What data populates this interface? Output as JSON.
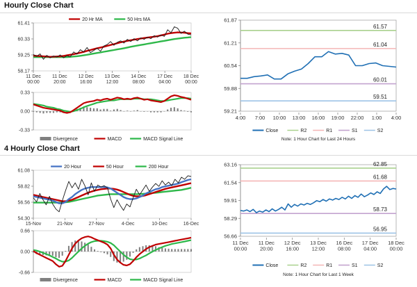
{
  "sections": {
    "hourly_title": "Hourly Close Chart",
    "four_hourly_title": "4 Hourly Close Chart"
  },
  "colors": {
    "price": "#1a1a1a",
    "ma_fast": "#c00000",
    "ma_mid": "#c00000",
    "ma_slow": "#2eb84a",
    "ma_blue": "#4472c4",
    "divergence": "#808080",
    "macd": "#c00000",
    "signal": "#2eb84a",
    "close": "#1f6fb4",
    "r2": "#a9d18e",
    "r1": "#f4b6b6",
    "s1": "#c3a3cf",
    "s2": "#9dc3e6"
  },
  "chart_data": [
    {
      "id": "hourly_price",
      "type": "line",
      "x_labels": [
        "11 Dec\n00:00",
        "11 Dec\n20:00",
        "12 Dec\n16:00",
        "13 Dec\n12:00",
        "14 Dec\n08:00",
        "17 Dec\n04:00",
        "18 Dec\n00:00"
      ],
      "y_ticks": [
        "61.41",
        "60.33",
        "59.25",
        "58.17"
      ],
      "ylim": [
        58.17,
        61.41
      ],
      "legend": [
        "20 Hr MA",
        "50 Hrs MA"
      ],
      "series": [
        {
          "name": "price",
          "values": [
            59.28,
            59.15,
            59.32,
            58.95,
            59.22,
            59.05,
            59.18,
            59.1,
            59.25,
            59.05,
            59.2,
            59.12,
            59.45,
            59.3,
            59.6,
            59.45,
            59.75,
            59.4,
            59.55,
            59.7,
            59.5,
            59.85,
            59.95,
            60.15,
            59.9,
            60.1,
            60.2,
            60.05,
            60.3,
            60.15,
            60.35,
            60.2,
            60.4,
            60.3,
            60.45,
            60.35,
            60.55,
            60.45,
            60.6,
            60.5,
            60.95,
            60.75,
            61.15,
            61.05,
            60.7,
            60.85,
            60.65,
            60.6
          ]
        },
        {
          "name": "20 Hr MA",
          "values": [
            59.2,
            59.18,
            59.17,
            59.15,
            59.14,
            59.12,
            59.13,
            59.14,
            59.15,
            59.18,
            59.22,
            59.26,
            59.3,
            59.35,
            59.4,
            59.45,
            59.52,
            59.58,
            59.64,
            59.7,
            59.75,
            59.8,
            59.86,
            59.92,
            59.98,
            60.04,
            60.1,
            60.15,
            60.2,
            60.24,
            60.28,
            60.32,
            60.36,
            60.39,
            60.42,
            60.45,
            60.48,
            60.52,
            60.57,
            60.62,
            60.68,
            60.72,
            60.75,
            60.77,
            60.76,
            60.75,
            60.72,
            60.7
          ]
        },
        {
          "name": "50 Hrs MA",
          "values": [
            59.1,
            59.1,
            59.1,
            59.1,
            59.1,
            59.1,
            59.1,
            59.1,
            59.1,
            59.1,
            59.1,
            59.12,
            59.14,
            59.16,
            59.19,
            59.22,
            59.26,
            59.3,
            59.34,
            59.38,
            59.42,
            59.46,
            59.5,
            59.54,
            59.58,
            59.62,
            59.66,
            59.7,
            59.75,
            59.8,
            59.84,
            59.88,
            59.92,
            59.96,
            60.0,
            60.04,
            60.08,
            60.12,
            60.16,
            60.2,
            60.24,
            60.28,
            60.32,
            60.35,
            60.38,
            60.41,
            60.43,
            60.45
          ]
        }
      ]
    },
    {
      "id": "hourly_macd",
      "type": "line",
      "y_ticks": [
        "0.33",
        "0.00",
        "-0.33"
      ],
      "ylim": [
        -0.33,
        0.33
      ],
      "legend": [
        "Divergence",
        "MACD",
        "MACD Signal Line"
      ],
      "series": [
        {
          "name": "MACD",
          "values": [
            0.12,
            0.1,
            0.08,
            0.06,
            0.05,
            0.04,
            0.03,
            0.02,
            0.01,
            -0.02,
            -0.03,
            -0.02,
            0.02,
            0.06,
            0.1,
            0.14,
            0.16,
            0.17,
            0.18,
            0.2,
            0.19,
            0.21,
            0.22,
            0.2,
            0.22,
            0.24,
            0.23,
            0.21,
            0.22,
            0.21,
            0.23,
            0.24,
            0.22,
            0.2,
            0.21,
            0.19,
            0.18,
            0.17,
            0.16,
            0.18,
            0.22,
            0.26,
            0.28,
            0.27,
            0.25,
            0.24,
            0.22,
            0.2
          ]
        },
        {
          "name": "MACD Signal Line",
          "values": [
            0.13,
            0.12,
            0.11,
            0.1,
            0.08,
            0.07,
            0.06,
            0.04,
            0.03,
            0.01,
            0.0,
            -0.01,
            0.0,
            0.02,
            0.04,
            0.07,
            0.09,
            0.11,
            0.13,
            0.15,
            0.16,
            0.17,
            0.18,
            0.19,
            0.19,
            0.2,
            0.21,
            0.21,
            0.21,
            0.21,
            0.22,
            0.22,
            0.22,
            0.21,
            0.21,
            0.21,
            0.2,
            0.19,
            0.18,
            0.18,
            0.19,
            0.2,
            0.21,
            0.22,
            0.23,
            0.23,
            0.23,
            0.22
          ]
        },
        {
          "name": "Divergence",
          "values": [
            -0.01,
            -0.02,
            -0.03,
            -0.04,
            -0.03,
            -0.03,
            -0.03,
            -0.02,
            -0.02,
            -0.03,
            -0.03,
            -0.01,
            0.02,
            0.04,
            0.06,
            0.07,
            0.07,
            0.06,
            0.05,
            0.05,
            0.03,
            0.04,
            0.04,
            0.01,
            0.03,
            0.04,
            0.02,
            0.0,
            0.01,
            0.0,
            0.01,
            0.02,
            0.0,
            -0.01,
            0.0,
            -0.02,
            -0.02,
            -0.02,
            -0.02,
            0.0,
            0.03,
            0.06,
            0.07,
            0.05,
            0.02,
            0.01,
            -0.01,
            -0.02
          ]
        }
      ]
    },
    {
      "id": "hourly_pivot",
      "type": "line",
      "x_labels": [
        "4:00",
        "7:00",
        "10:00",
        "13:00",
        "16:00",
        "19:00",
        "22:00",
        "1:00",
        "4:00"
      ],
      "y_ticks": [
        "61.87",
        "61.21",
        "60.54",
        "59.88",
        "59.21"
      ],
      "ylim": [
        59.21,
        61.87
      ],
      "levels": [
        {
          "name": "R2",
          "value": 61.57,
          "label": "61.57"
        },
        {
          "name": "R1",
          "value": 61.04,
          "label": "61.04"
        },
        {
          "name": "S1",
          "value": 60.01,
          "label": "60.01"
        },
        {
          "name": "S2",
          "value": 59.51,
          "label": "59.51"
        }
      ],
      "legend": [
        "Close",
        "R2",
        "R1",
        "S1",
        "S2"
      ],
      "note": "Note: 1 Hour Chart for Last 24 Hours",
      "series": [
        {
          "name": "Close",
          "values": [
            60.17,
            60.17,
            60.22,
            60.24,
            60.27,
            60.15,
            60.15,
            60.3,
            60.38,
            60.44,
            60.6,
            60.8,
            60.8,
            60.95,
            60.88,
            60.9,
            60.85,
            60.54,
            60.54,
            60.6,
            60.62,
            60.54,
            60.52,
            60.5
          ]
        }
      ]
    },
    {
      "id": "four_hourly_price",
      "type": "line",
      "x_labels": [
        "15-Nov",
        "21-Nov",
        "27-Nov",
        "4-Dec",
        "10-Dec",
        "16-Dec"
      ],
      "y_ticks": [
        "61.08",
        "58.82",
        "56.56",
        "54.30"
      ],
      "ylim": [
        54.3,
        61.08
      ],
      "legend": [
        "20 Hour",
        "50 Hour",
        "200 Hour"
      ],
      "series": [
        {
          "name": "price",
          "values": [
            57.2,
            56.6,
            57.8,
            56.9,
            56.2,
            57.4,
            56.3,
            55.6,
            55.2,
            56.8,
            58.2,
            59.5,
            58.6,
            59.3,
            58.4,
            59.8,
            58.9,
            57.6,
            59.3,
            58.1,
            59.0,
            58.7,
            58.9,
            58.6,
            57.0,
            55.8,
            56.9,
            56.1,
            55.4,
            56.3,
            55.9,
            57.2,
            58.4,
            57.6,
            58.3,
            59.0,
            58.1,
            58.7,
            59.2,
            58.8,
            59.6,
            59.0,
            59.4,
            58.9,
            59.8,
            59.3,
            60.1,
            59.8,
            60.3,
            60.2
          ]
        },
        {
          "name": "20 Hour",
          "values": [
            57.4,
            57.3,
            57.2,
            57.1,
            57.0,
            56.9,
            56.8,
            56.6,
            56.4,
            56.4,
            56.6,
            57.0,
            57.3,
            57.7,
            58.0,
            58.3,
            58.5,
            58.6,
            58.7,
            58.7,
            58.7,
            58.7,
            58.7,
            58.65,
            58.5,
            58.2,
            57.9,
            57.6,
            57.3,
            57.1,
            57.0,
            57.0,
            57.1,
            57.3,
            57.5,
            57.8,
            58.0,
            58.2,
            58.4,
            58.5,
            58.7,
            58.8,
            58.9,
            59.0,
            59.1,
            59.2,
            59.4,
            59.55,
            59.7,
            59.8
          ]
        },
        {
          "name": "50 Hour",
          "values": [
            57.6,
            57.5,
            57.4,
            57.3,
            57.2,
            57.1,
            57.0,
            56.9,
            56.8,
            56.7,
            56.7,
            56.8,
            56.9,
            57.1,
            57.3,
            57.5,
            57.7,
            57.9,
            58.05,
            58.2,
            58.3,
            58.4,
            58.45,
            58.5,
            58.5,
            58.45,
            58.35,
            58.2,
            58.0,
            57.8,
            57.6,
            57.45,
            57.4,
            57.4,
            57.45,
            57.55,
            57.7,
            57.85,
            58.0,
            58.15,
            58.3,
            58.45,
            58.55,
            58.65,
            58.75,
            58.85,
            58.95,
            59.05,
            59.15,
            59.25
          ]
        },
        {
          "name": "200 Hour",
          "values": [
            56.5,
            56.5,
            56.5,
            56.5,
            56.5,
            56.5,
            56.5,
            56.5,
            56.5,
            56.5,
            56.55,
            56.6,
            56.7,
            56.8,
            56.9,
            57.0,
            57.1,
            57.2,
            57.3,
            57.4,
            57.5,
            57.55,
            57.6,
            57.65,
            57.7,
            57.7,
            57.7,
            57.7,
            57.7,
            57.7,
            57.7,
            57.7,
            57.7,
            57.72,
            57.75,
            57.78,
            57.82,
            57.86,
            57.9,
            57.95,
            58.0,
            58.05,
            58.1,
            58.15,
            58.2,
            58.25,
            58.3,
            58.4,
            58.5,
            58.6
          ]
        }
      ]
    },
    {
      "id": "four_hourly_macd",
      "type": "line",
      "y_ticks": [
        "0.66",
        "0.00",
        "-0.66"
      ],
      "ylim": [
        -0.66,
        0.66
      ],
      "legend": [
        "Divergence",
        "MACD",
        "MACD Signal Line"
      ],
      "series": [
        {
          "name": "MACD",
          "values": [
            0.02,
            -0.05,
            -0.1,
            -0.15,
            -0.2,
            -0.25,
            -0.3,
            -0.4,
            -0.48,
            -0.45,
            -0.3,
            -0.1,
            0.1,
            0.25,
            0.35,
            0.42,
            0.46,
            0.48,
            0.45,
            0.4,
            0.36,
            0.32,
            0.28,
            0.22,
            0.1,
            -0.1,
            -0.25,
            -0.35,
            -0.42,
            -0.44,
            -0.4,
            -0.3,
            -0.18,
            -0.08,
            0.0,
            0.08,
            0.14,
            0.18,
            0.22,
            0.24,
            0.26,
            0.28,
            0.3,
            0.32,
            0.34,
            0.36,
            0.38,
            0.4,
            0.42,
            0.44
          ]
        },
        {
          "name": "MACD Signal Line",
          "values": [
            0.05,
            0.03,
            0.0,
            -0.04,
            -0.08,
            -0.12,
            -0.17,
            -0.22,
            -0.28,
            -0.32,
            -0.32,
            -0.28,
            -0.2,
            -0.1,
            0.0,
            0.1,
            0.18,
            0.25,
            0.3,
            0.33,
            0.34,
            0.34,
            0.33,
            0.31,
            0.27,
            0.2,
            0.1,
            0.0,
            -0.1,
            -0.18,
            -0.24,
            -0.26,
            -0.25,
            -0.22,
            -0.17,
            -0.12,
            -0.06,
            0.0,
            0.05,
            0.1,
            0.14,
            0.18,
            0.21,
            0.24,
            0.26,
            0.28,
            0.3,
            0.32,
            0.34,
            0.36
          ]
        },
        {
          "name": "Divergence",
          "values": [
            -0.03,
            -0.08,
            -0.1,
            -0.11,
            -0.12,
            -0.13,
            -0.13,
            -0.18,
            -0.2,
            -0.13,
            0.02,
            0.18,
            0.3,
            0.35,
            0.35,
            0.32,
            0.28,
            0.23,
            0.15,
            0.07,
            0.02,
            -0.02,
            -0.05,
            -0.09,
            -0.17,
            -0.3,
            -0.35,
            -0.35,
            -0.32,
            -0.26,
            -0.16,
            -0.04,
            0.07,
            0.14,
            0.17,
            0.2,
            0.2,
            0.18,
            0.17,
            0.14,
            0.12,
            0.1,
            0.09,
            0.08,
            0.08,
            0.08,
            0.08,
            0.08,
            0.08,
            0.08
          ]
        }
      ]
    },
    {
      "id": "four_hourly_pivot",
      "type": "line",
      "x_labels": [
        "11 Dec\n00:00",
        "11 Dec\n20:00",
        "12 Dec\n16:00",
        "13 Dec\n12:00",
        "16 Dec\n08:00",
        "17 Dec\n04:00",
        "18 Dec\n00:00"
      ],
      "y_ticks": [
        "63.16",
        "61.54",
        "59.91",
        "58.29",
        "56.66"
      ],
      "ylim": [
        56.66,
        63.16
      ],
      "levels": [
        {
          "name": "R2",
          "value": 62.85,
          "label": "62.85"
        },
        {
          "name": "R1",
          "value": 61.68,
          "label": "61.68"
        },
        {
          "name": "S1",
          "value": 58.73,
          "label": "58.73"
        },
        {
          "name": "S2",
          "value": 56.95,
          "label": "56.95"
        }
      ],
      "legend": [
        "Close",
        "R2",
        "R1",
        "S1",
        "S2"
      ],
      "note": "Note: 1 Hour Chart for Last 1 Week",
      "series": [
        {
          "name": "Close",
          "values": [
            59.0,
            58.95,
            59.05,
            58.9,
            59.1,
            58.8,
            58.95,
            58.85,
            59.05,
            58.9,
            59.15,
            58.95,
            59.1,
            59.3,
            59.05,
            59.6,
            59.3,
            59.55,
            59.4,
            59.6,
            59.5,
            59.65,
            59.55,
            59.7,
            59.9,
            59.8,
            60.0,
            59.85,
            60.05,
            59.95,
            60.1,
            60.0,
            60.2,
            60.05,
            60.3,
            60.1,
            60.35,
            60.2,
            60.5,
            60.25,
            60.4,
            60.6,
            60.45,
            60.7,
            60.55,
            60.95,
            61.2,
            60.9,
            61.0,
            60.95
          ]
        }
      ]
    }
  ]
}
